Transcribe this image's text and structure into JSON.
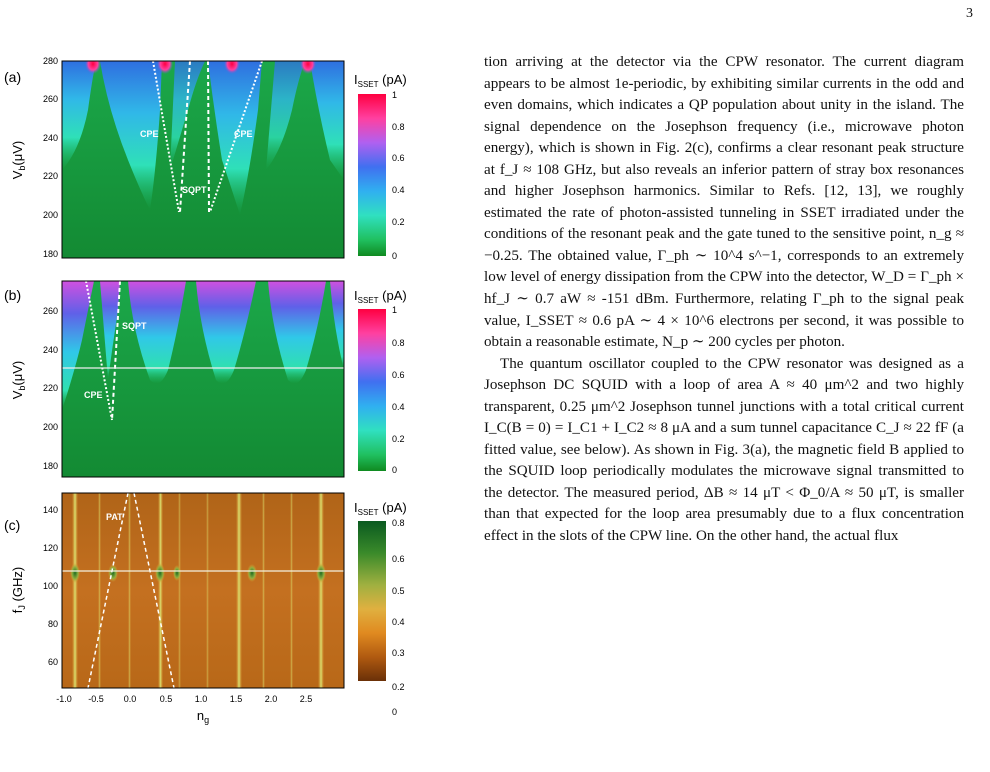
{
  "page_number": "3",
  "figure": {
    "panels": [
      {
        "label": "(a)",
        "ylabel": "V_b(μV)",
        "yticks": [
          "280",
          "260",
          "240",
          "220",
          "200",
          "180"
        ],
        "cbar_title": "I_SSET (pA)",
        "cbar_ticks": [
          "1",
          "0.8",
          "0.6",
          "0.4",
          "0.2",
          "0"
        ],
        "annotations": [
          "CPE",
          "CPE",
          "SQPT"
        ]
      },
      {
        "label": "(b)",
        "ylabel": "V_b(μV)",
        "yticks": [
          "260",
          "240",
          "220",
          "200",
          "180"
        ],
        "cbar_title": "I_SSET (pA)",
        "cbar_ticks": [
          "1",
          "0.8",
          "0.6",
          "0.4",
          "0.2",
          "0"
        ],
        "annotations": [
          "SQPT",
          "CPE"
        ]
      },
      {
        "label": "(c)",
        "ylabel": "f_J (GHz)",
        "yticks": [
          "140",
          "120",
          "100",
          "80",
          "60"
        ],
        "cbar_title": "I_SSET (pA)",
        "cbar_ticks": [
          "0.8",
          "0.6",
          "0.5",
          "0.4",
          "0.3",
          "0.2",
          "0"
        ],
        "annotations": [
          "PAT"
        ]
      }
    ],
    "xticks": [
      "-1.0",
      "-0.5",
      "0.0",
      "0.5",
      "1.0",
      "1.5",
      "2.0",
      "2.5"
    ],
    "xlabel": "n_g"
  },
  "text": {
    "para1": "tion arriving at the detector via the CPW resonator. The current diagram appears to be almost 1e-periodic, by exhibiting similar currents in the odd and even domains, which indicates a QP population about unity in the island. The signal dependence on the Josephson frequency (i.e., microwave photon energy), which is shown in Fig. 2(c), confirms a clear resonant peak structure at f_J ≈ 108 GHz, but also reveals an inferior pattern of stray box resonances and higher Josephson harmonics. Similar to Refs. [12, 13], we roughly estimated the rate of photon-assisted tunneling in SSET irradiated under the conditions of the resonant peak and the gate tuned to the sensitive point, n_g ≈ −0.25. The obtained value, Γ_ph ∼ 10^4 s^−1, corresponds to an extremely low level of energy dissipation from the CPW into the detector, W_D = Γ_ph × hf_J ∼ 0.7 aW ≈ -151 dBm. Furthermore, relating Γ_ph to the signal peak value, I_SSET ≈ 0.6 pA ∼ 4 × 10^6 electrons per second, it was possible to obtain a reasonable estimate, N_p ∼ 200 cycles per photon.",
    "para2": "The quantum oscillator coupled to the CPW resonator was designed as a Josephson DC SQUID with a loop of area A ≈ 40 μm^2 and two highly transparent, 0.25 μm^2 Josephson tunnel junctions with a total critical current I_C(B = 0) = I_C1 + I_C2 ≈ 8 μA and a sum tunnel capacitance C_J ≈ 22 fF (a fitted value, see below). As shown in Fig. 3(a), the magnetic field B applied to the SQUID loop periodically modulates the microwave signal transmitted to the detector. The measured period, ΔB ≈ 14 μT < Φ_0/A ≈ 50 μT, is smaller than that expected for the loop area presumably due to a flux concentration effect in the slots of the CPW line. On the other hand, the actual flux"
  }
}
